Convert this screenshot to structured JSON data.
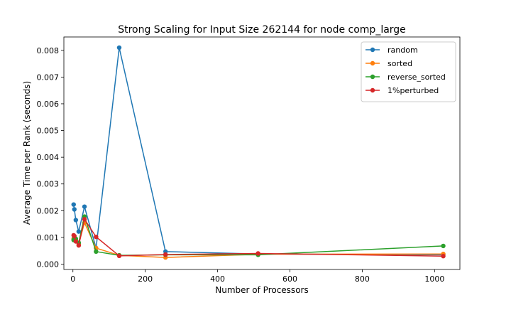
{
  "chart_data": {
    "type": "line",
    "title": "Strong Scaling for Input Size 262144 for node comp_large",
    "xlabel": "Number of Processors",
    "ylabel": "Average Time per Rank (seconds)",
    "xlim": [
      -25,
      1070
    ],
    "ylim": [
      -0.0002,
      0.0085
    ],
    "xticks": [
      0,
      200,
      400,
      600,
      800,
      1000
    ],
    "yticks": [
      0.0,
      0.001,
      0.002,
      0.003,
      0.004,
      0.005,
      0.006,
      0.007,
      0.008
    ],
    "ytick_labels": [
      "0.000",
      "0.001",
      "0.002",
      "0.003",
      "0.004",
      "0.005",
      "0.006",
      "0.007",
      "0.008"
    ],
    "legend_position": "top-right",
    "grid": false,
    "series": [
      {
        "name": "random",
        "color": "#1f77b4",
        "x": [
          2,
          4,
          8,
          16,
          32,
          64,
          128,
          256,
          512,
          1024
        ],
        "y": [
          0.00223,
          0.00205,
          0.00165,
          0.00122,
          0.00215,
          0.0006,
          0.0081,
          0.00047,
          0.00038,
          0.00035
        ]
      },
      {
        "name": "sorted",
        "color": "#ff7f0e",
        "x": [
          2,
          4,
          8,
          16,
          32,
          64,
          128,
          256,
          512,
          1024
        ],
        "y": [
          0.00095,
          0.001,
          0.0009,
          0.00075,
          0.00155,
          0.0006,
          0.00033,
          0.00025,
          0.00037,
          0.00038
        ]
      },
      {
        "name": "reverse_sorted",
        "color": "#2ca02c",
        "x": [
          2,
          4,
          8,
          16,
          32,
          64,
          128,
          256,
          512,
          1024
        ],
        "y": [
          0.0009,
          0.001,
          0.00095,
          0.0008,
          0.00178,
          0.00047,
          0.00033,
          0.00035,
          0.00035,
          0.00068
        ]
      },
      {
        "name": "1%perturbed",
        "color": "#d62728",
        "x": [
          2,
          4,
          8,
          16,
          32,
          64,
          128,
          256,
          512,
          1024
        ],
        "y": [
          0.00108,
          0.00105,
          0.00085,
          0.0007,
          0.00168,
          0.00102,
          0.00031,
          0.00036,
          0.0004,
          0.0003
        ]
      }
    ]
  }
}
